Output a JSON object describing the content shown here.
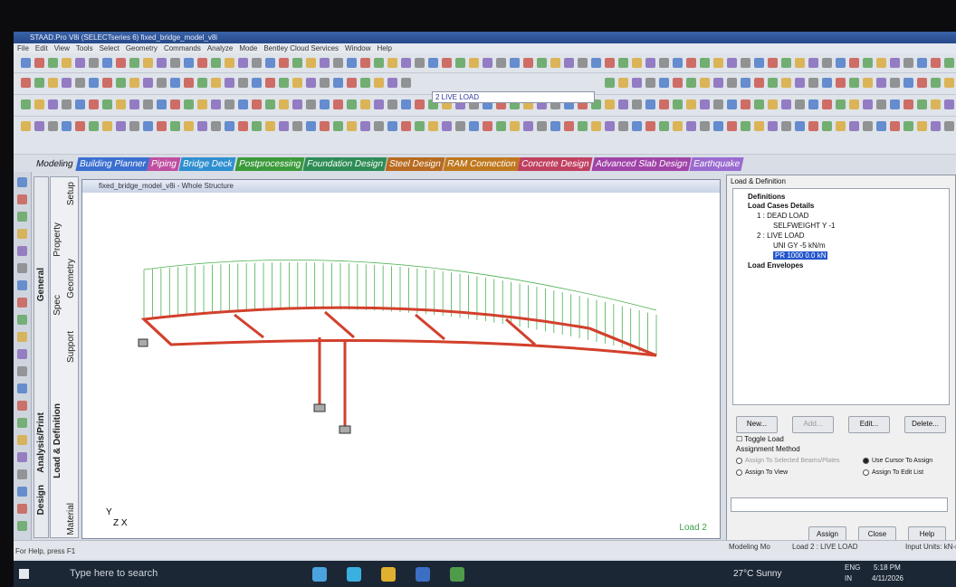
{
  "window_title": "STAAD.Pro V8i (SELECTseries 6) fixed_bridge_model_v8i",
  "menu": [
    "File",
    "Edit",
    "View",
    "Tools",
    "Select",
    "Geometry",
    "Commands",
    "Analyze",
    "Mode",
    "Bentley Cloud Services",
    "Window",
    "Help"
  ],
  "load_selector": "2 LIVE LOAD",
  "tabs": [
    "Modeling",
    "Building Planner",
    "Piping",
    "Bridge Deck",
    "Postprocessing",
    "Foundation Design",
    "Steel Design",
    "RAM Connection",
    "Concrete Design",
    "Advanced Slab Design",
    "Earthquake"
  ],
  "side_tabs": {
    "outer": [
      "General",
      "Analysis/Print",
      "Design"
    ],
    "inner": [
      "Setup",
      "Property",
      "Geometry",
      "Spec",
      "Support",
      "Load & Definition",
      "Material"
    ]
  },
  "viewport": {
    "title": "fixed_bridge_model_v8i - Whole Structure",
    "load_label": "Load 2"
  },
  "panel": {
    "title": "Load & Definition",
    "tree": [
      "Definitions",
      "Load Cases Details",
      "1 : DEAD LOAD",
      "SELFWEIGHT Y -1",
      "2 : LIVE LOAD",
      "UNI GY -5 kN/m",
      "PR 1000 0.0 kN",
      "Load Envelopes"
    ],
    "buttons": [
      "New...",
      "Add...",
      "Edit...",
      "Delete..."
    ],
    "toggle": "Toggle Load",
    "assignment_method": "Assignment Method",
    "options": [
      "Assign To Selected Beams/Plates",
      "Use Cursor To Assign",
      "Assign To View",
      "Assign To Edit List"
    ],
    "footer_buttons": [
      "Assign",
      "Close",
      "Help"
    ]
  },
  "status": {
    "help": "For Help, press F1",
    "mode": "Modeling Mo",
    "load": "Load 2 : LIVE LOAD",
    "units": "Input Units: kN-m"
  },
  "taskbar": {
    "search": "Type here to search",
    "weather": "27°C Sunny",
    "lang": "ENG",
    "region": "IN",
    "time": "5:18 PM",
    "date": "4/11/2026"
  }
}
